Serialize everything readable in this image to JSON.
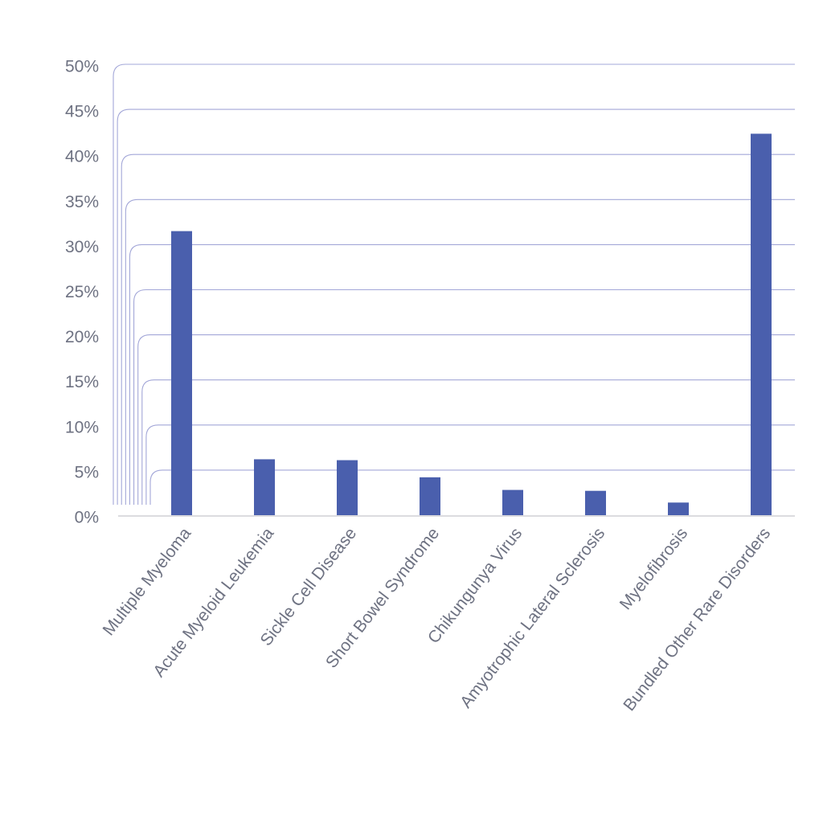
{
  "chart_data": {
    "type": "bar",
    "categories": [
      "Multiple Myeloma",
      "Acute Myeloid Leukemia",
      "Sickle Cell Disease",
      "Short Bowel Syndrome",
      "Chikungunya Virus",
      "Amyotrophic Lateral Sclerosis",
      "Myelofibrosis",
      "Bundled Other Rare Disorders"
    ],
    "values": [
      31.5,
      6.2,
      6.1,
      4.2,
      2.8,
      2.7,
      1.4,
      42.3
    ],
    "color": "#4a5fad",
    "ylim": [
      0,
      50
    ],
    "yticks": [
      {
        "value": 0,
        "label": "0%"
      },
      {
        "value": 5,
        "label": "5%"
      },
      {
        "value": 10,
        "label": "10%"
      },
      {
        "value": 15,
        "label": "15%"
      },
      {
        "value": 20,
        "label": "20%"
      },
      {
        "value": 25,
        "label": "25%"
      },
      {
        "value": 30,
        "label": "30%"
      },
      {
        "value": 35,
        "label": "35%"
      },
      {
        "value": 40,
        "label": "40%"
      },
      {
        "value": 45,
        "label": "45%"
      },
      {
        "value": 50,
        "label": "50%"
      }
    ],
    "grid": true
  }
}
